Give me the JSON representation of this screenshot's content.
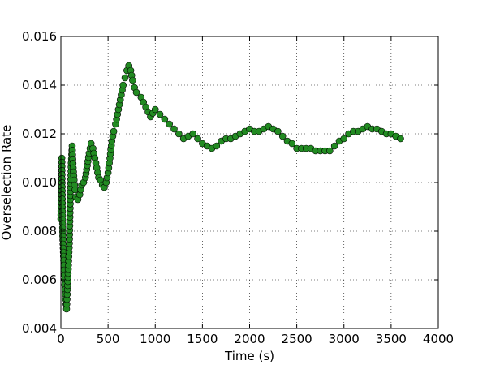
{
  "chart_data": {
    "type": "scatter",
    "title": "",
    "xlabel": "Time (s)",
    "ylabel": "Overselection Rate",
    "xlim": [
      0,
      4000
    ],
    "ylim": [
      0.004,
      0.016
    ],
    "x_ticks": [
      "0",
      "500",
      "1000",
      "1500",
      "2000",
      "2500",
      "3000",
      "3500",
      "4000"
    ],
    "y_ticks": [
      "0.004",
      "0.006",
      "0.008",
      "0.010",
      "0.012",
      "0.014",
      "0.016"
    ],
    "grid": true,
    "legend": "none",
    "marker": "circle",
    "marker_fill": "#228B22",
    "marker_edge": "#000000",
    "line_style": "dashed",
    "line_color": "#228B22",
    "series": [
      {
        "x": [
          0,
          10,
          20,
          30,
          40,
          50,
          60,
          70,
          80,
          90,
          100,
          110,
          120,
          130,
          140,
          150,
          160,
          180,
          200,
          220,
          240,
          260,
          280,
          300,
          320,
          340,
          360,
          380,
          400,
          420,
          440,
          460,
          480,
          500,
          520,
          540,
          560,
          580,
          600,
          620,
          640,
          660,
          680,
          700,
          720,
          740,
          760,
          780,
          800,
          850,
          900,
          950,
          1000,
          1050,
          1100,
          1150,
          1200,
          1250,
          1300,
          1350,
          1400,
          1450,
          1500,
          1550,
          1600,
          1650,
          1700,
          1750,
          1800,
          1850,
          1900,
          1950,
          2000,
          2050,
          2100,
          2150,
          2200,
          2250,
          2300,
          2350,
          2400,
          2450,
          2500,
          2550,
          2600,
          2650,
          2700,
          2750,
          2800,
          2850,
          2900,
          2950,
          3000,
          3050,
          3100,
          3150,
          3200,
          3250,
          3300,
          3350,
          3400,
          3450,
          3500,
          3550,
          3600
        ],
        "y": [
          0.0085,
          0.011,
          0.0078,
          0.0068,
          0.006,
          0.0052,
          0.0048,
          0.0056,
          0.0066,
          0.0075,
          0.0093,
          0.0108,
          0.0115,
          0.0106,
          0.0101,
          0.0097,
          0.0094,
          0.0093,
          0.0095,
          0.0099,
          0.01,
          0.0102,
          0.0107,
          0.0112,
          0.0116,
          0.0114,
          0.011,
          0.0106,
          0.0102,
          0.0101,
          0.0099,
          0.0098,
          0.01,
          0.0104,
          0.011,
          0.0117,
          0.0121,
          0.0124,
          0.0128,
          0.0132,
          0.0136,
          0.014,
          0.0143,
          0.0146,
          0.0148,
          0.0146,
          0.0142,
          0.0139,
          0.0137,
          0.0135,
          0.0131,
          0.0127,
          0.013,
          0.0128,
          0.0126,
          0.0124,
          0.0122,
          0.012,
          0.0118,
          0.0119,
          0.012,
          0.0118,
          0.0116,
          0.0115,
          0.0114,
          0.0115,
          0.0117,
          0.0118,
          0.0118,
          0.0119,
          0.012,
          0.0121,
          0.0122,
          0.0121,
          0.0121,
          0.0122,
          0.0123,
          0.0122,
          0.0121,
          0.0119,
          0.0117,
          0.0116,
          0.0114,
          0.0114,
          0.0114,
          0.0114,
          0.0113,
          0.0113,
          0.0113,
          0.0113,
          0.0115,
          0.0117,
          0.0118,
          0.012,
          0.0121,
          0.0121,
          0.0122,
          0.0123,
          0.0122,
          0.0122,
          0.0121,
          0.012,
          0.012,
          0.0119,
          0.0118
        ]
      }
    ]
  }
}
